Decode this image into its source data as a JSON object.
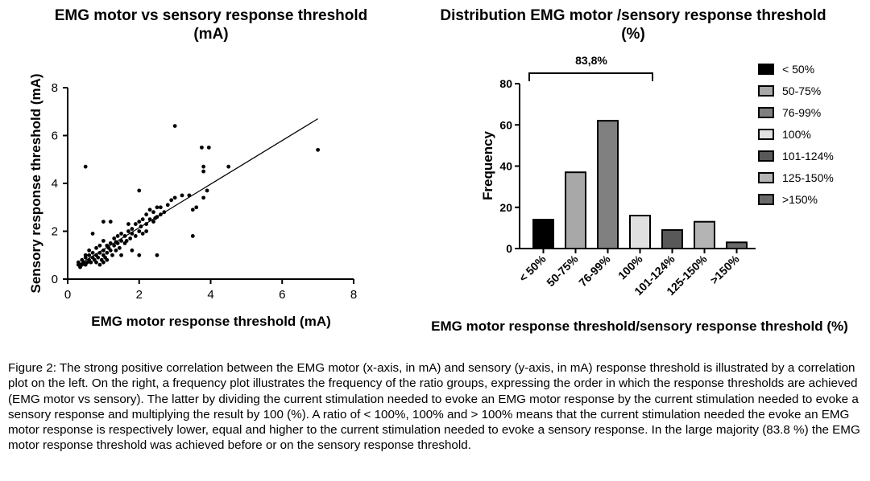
{
  "figure_caption": "Figure 2: The strong positive correlation between the EMG motor (x-axis, in mA) and sensory (y-axis, in mA) response threshold is illustrated by a correlation plot on the left. On the right, a frequency plot illustrates the frequency of the ratio groups, expressing the order in which the response thresholds are achieved (EMG motor vs sensory). The latter by dividing the current stimulation needed to evoke an EMG motor response by the current stimulation needed to evoke a sensory response and multiplying the result by 100 (%). A ratio of < 100%, 100% and > 100% means that the current stimulation needed the evoke an EMG motor response is respectively lower, equal and higher to the current stimulation needed to evoke a sensory response. In the large majority (83.8 %) the EMG motor response threshold was achieved before or on the sensory response threshold.",
  "chart_data": [
    {
      "type": "scatter",
      "title_line1": "EMG motor vs sensory response threshold",
      "title_line2": "(mA)",
      "xlabel": "EMG motor response threshold (mA)",
      "ylabel": "Sensory response threshold (mA)",
      "xlim": [
        0,
        8
      ],
      "ylim": [
        0,
        8
      ],
      "xticks": [
        0,
        2,
        4,
        6,
        8
      ],
      "yticks": [
        0,
        2,
        4,
        6,
        8
      ],
      "trendline": [
        [
          0.3,
          0.6
        ],
        [
          7.0,
          6.7
        ]
      ],
      "points": [
        [
          0.3,
          0.6
        ],
        [
          0.3,
          0.7
        ],
        [
          0.35,
          0.5
        ],
        [
          0.4,
          0.6
        ],
        [
          0.4,
          0.8
        ],
        [
          0.45,
          0.7
        ],
        [
          0.5,
          0.6
        ],
        [
          0.5,
          0.9
        ],
        [
          0.5,
          1.0
        ],
        [
          0.55,
          0.7
        ],
        [
          0.6,
          0.8
        ],
        [
          0.6,
          1.0
        ],
        [
          0.6,
          1.2
        ],
        [
          0.65,
          0.7
        ],
        [
          0.7,
          0.9
        ],
        [
          0.7,
          1.1
        ],
        [
          0.75,
          0.8
        ],
        [
          0.8,
          1.0
        ],
        [
          0.8,
          1.3
        ],
        [
          0.85,
          0.9
        ],
        [
          0.9,
          1.1
        ],
        [
          0.9,
          1.4
        ],
        [
          0.95,
          0.8
        ],
        [
          1.0,
          1.0
        ],
        [
          1.0,
          1.2
        ],
        [
          1.0,
          1.6
        ],
        [
          1.05,
          0.9
        ],
        [
          1.1,
          1.1
        ],
        [
          1.1,
          1.4
        ],
        [
          1.15,
          1.3
        ],
        [
          1.2,
          1.2
        ],
        [
          1.2,
          1.5
        ],
        [
          1.25,
          1.0
        ],
        [
          1.3,
          1.4
        ],
        [
          1.3,
          1.7
        ],
        [
          1.35,
          1.2
        ],
        [
          1.4,
          1.5
        ],
        [
          1.4,
          1.8
        ],
        [
          1.45,
          1.3
        ],
        [
          1.5,
          1.6
        ],
        [
          1.5,
          1.9
        ],
        [
          1.6,
          1.5
        ],
        [
          1.6,
          1.8
        ],
        [
          1.65,
          1.6
        ],
        [
          1.7,
          2.0
        ],
        [
          1.75,
          1.7
        ],
        [
          1.8,
          1.9
        ],
        [
          1.8,
          2.1
        ],
        [
          1.9,
          1.8
        ],
        [
          1.9,
          2.3
        ],
        [
          2.0,
          2.0
        ],
        [
          2.0,
          2.4
        ],
        [
          2.05,
          2.2
        ],
        [
          2.1,
          1.9
        ],
        [
          2.1,
          2.5
        ],
        [
          2.2,
          2.3
        ],
        [
          2.2,
          2.7
        ],
        [
          2.3,
          2.5
        ],
        [
          2.4,
          2.4
        ],
        [
          2.4,
          2.8
        ],
        [
          2.5,
          2.6
        ],
        [
          2.5,
          3.0
        ],
        [
          2.6,
          2.7
        ],
        [
          2.7,
          2.8
        ],
        [
          2.8,
          3.1
        ],
        [
          2.9,
          3.3
        ],
        [
          3.0,
          3.4
        ],
        [
          0.5,
          4.7
        ],
        [
          3.0,
          6.4
        ],
        [
          3.5,
          1.8
        ],
        [
          3.2,
          3.5
        ],
        [
          3.4,
          3.5
        ],
        [
          3.5,
          2.9
        ],
        [
          3.6,
          3.0
        ],
        [
          3.75,
          5.5
        ],
        [
          3.8,
          4.5
        ],
        [
          3.8,
          4.7
        ],
        [
          3.8,
          3.4
        ],
        [
          3.9,
          3.7
        ],
        [
          3.95,
          5.5
        ],
        [
          4.5,
          4.7
        ],
        [
          7.0,
          5.4
        ],
        [
          2.0,
          3.7
        ],
        [
          2.0,
          1.0
        ],
        [
          2.5,
          1.0
        ],
        [
          1.0,
          0.7
        ],
        [
          1.0,
          2.4
        ],
        [
          1.2,
          2.4
        ],
        [
          0.7,
          1.9
        ],
        [
          2.3,
          2.9
        ],
        [
          1.8,
          1.2
        ],
        [
          2.6,
          3.0
        ],
        [
          1.5,
          1.0
        ],
        [
          0.8,
          0.7
        ],
        [
          1.1,
          0.8
        ],
        [
          2.2,
          2.0
        ],
        [
          1.7,
          2.3
        ],
        [
          0.9,
          0.6
        ],
        [
          2.45,
          2.55
        ],
        [
          1.35,
          1.55
        ]
      ]
    },
    {
      "type": "bar",
      "title_line1": "Distribution EMG motor /sensory response threshold",
      "title_line2": "(%)",
      "xlabel": "EMG motor response threshold/sensory response threshold (%)",
      "ylabel": "Frequency",
      "ylim": [
        0,
        80
      ],
      "yticks": [
        0,
        20,
        40,
        60,
        80
      ],
      "categories": [
        "< 50%",
        "50-75%",
        "76-99%",
        "100%",
        "101-124%",
        "125-150%",
        ">150%"
      ],
      "values": [
        14,
        37,
        62,
        16,
        9,
        13,
        3
      ],
      "colors": [
        "#000000",
        "#a8a8a8",
        "#808080",
        "#e0e0e0",
        "#595959",
        "#b4b4b4",
        "#696969"
      ],
      "bracket_label": "83,8%",
      "legend_position": "right"
    }
  ]
}
